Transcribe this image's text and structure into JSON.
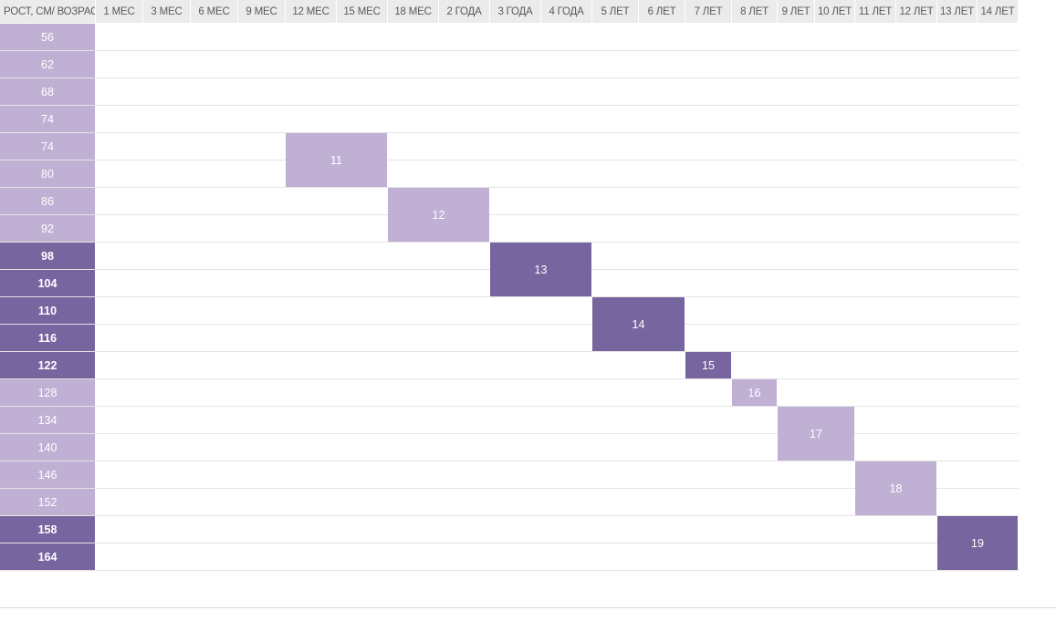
{
  "header": {
    "corner_label": "РОСТ, СМ/ ВОЗРАСТ",
    "ages": [
      "1 МЕС",
      "3 МЕС",
      "6 МЕС",
      "9 МЕС",
      "12 МЕС",
      "15 МЕС",
      "18 МЕС",
      "2 ГОДА",
      "3 ГОДА",
      "4 ГОДА",
      "5 ЛЕТ",
      "6 ЛЕТ",
      "7 ЛЕТ",
      "8 ЛЕТ",
      "9 ЛЕТ",
      "10 ЛЕТ",
      "11 ЛЕТ",
      "12 ЛЕТ",
      "13 ЛЕТ",
      "14 ЛЕТ"
    ]
  },
  "heights": [
    "56",
    "62",
    "68",
    "74",
    "74",
    "80",
    "86",
    "92",
    "98",
    "104",
    "110",
    "116",
    "122",
    "128",
    "134",
    "140",
    "146",
    "152",
    "158",
    "164"
  ],
  "sizes": [
    {
      "label": "11",
      "shade": "light"
    },
    {
      "label": "12",
      "shade": "light"
    },
    {
      "label": "13",
      "shade": "dark"
    },
    {
      "label": "14",
      "shade": "dark"
    },
    {
      "label": "15",
      "shade": "dark"
    },
    {
      "label": "16",
      "shade": "light"
    },
    {
      "label": "17",
      "shade": "light"
    },
    {
      "label": "18",
      "shade": "light"
    },
    {
      "label": "19",
      "shade": "dark"
    }
  ],
  "colors": {
    "light": "#c0b0d4",
    "dark": "#7765a0",
    "header_bg": "#ebebeb"
  }
}
